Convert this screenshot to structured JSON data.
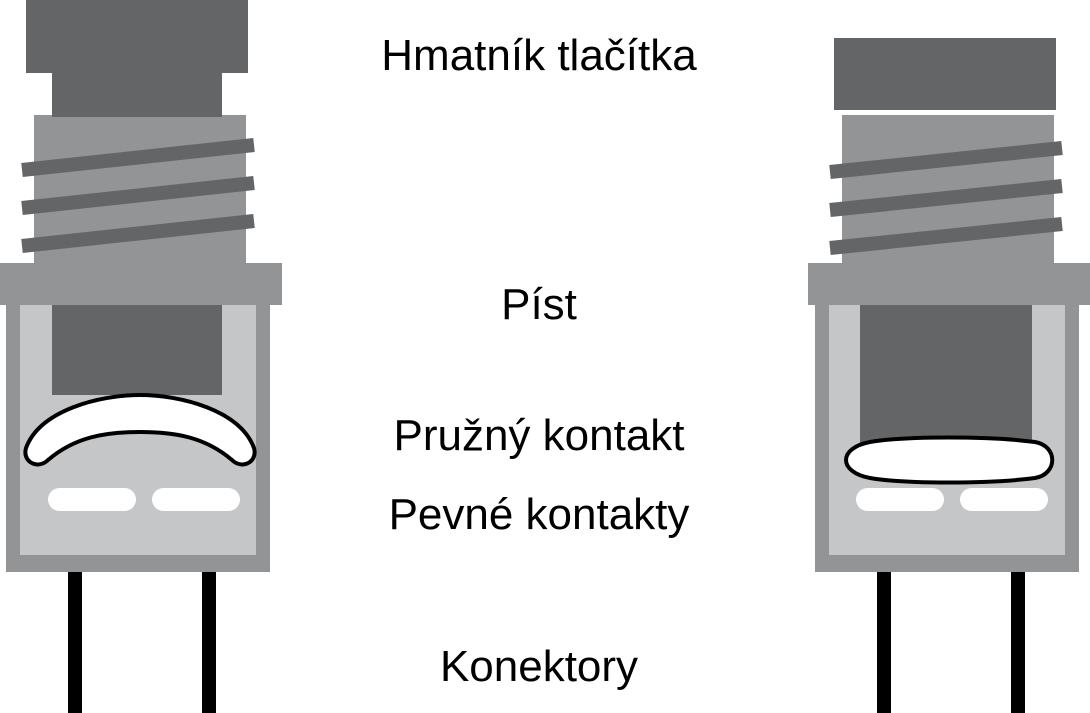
{
  "labels": {
    "button_cap": "Hmatník tlačítka",
    "plunger": "Píst",
    "spring_contact": "Pružný kontakt",
    "fixed_contacts": "Pevné kontakty",
    "connectors": "Konektory"
  },
  "states": [
    {
      "state": "released",
      "spring_contact_shape": "bowed"
    },
    {
      "state": "pressed",
      "spring_contact_shape": "flat"
    }
  ],
  "colors": {
    "dark_gray": "#646567",
    "mid_gray": "#939496",
    "light_gray": "#c5c6c8",
    "contact_white": "#ffffff",
    "wire_black": "#000000"
  }
}
